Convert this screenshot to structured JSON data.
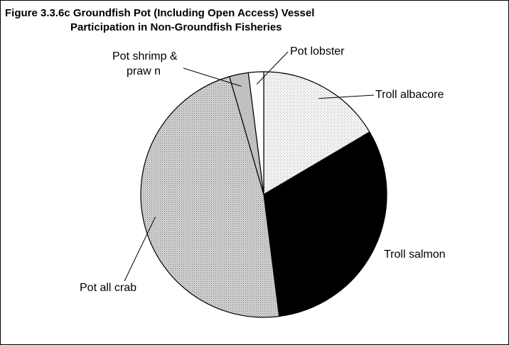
{
  "chart_data": {
    "type": "pie",
    "title_line1": "Figure 3.3.6c  Groundfish Pot (Including Open Access) Vessel",
    "title_line2": "Participation in Non-Groundfish Fisheries",
    "slices": [
      {
        "label": "Troll albacore",
        "value": 16.5,
        "fill": "checker-light"
      },
      {
        "label": "Troll salmon",
        "value": 31.5,
        "fill": "#000000"
      },
      {
        "label": "Pot all crab",
        "value": 47.5,
        "fill": "dots-gray"
      },
      {
        "label": "Pot shrimp &",
        "label2": "praw n",
        "value": 2.5,
        "fill": "#c0c0c0"
      },
      {
        "label": "Pot lobster",
        "value": 2.0,
        "fill": "#ffffff"
      }
    ],
    "start_angle_deg": 0,
    "direction": "clockwise",
    "legend": "none"
  }
}
